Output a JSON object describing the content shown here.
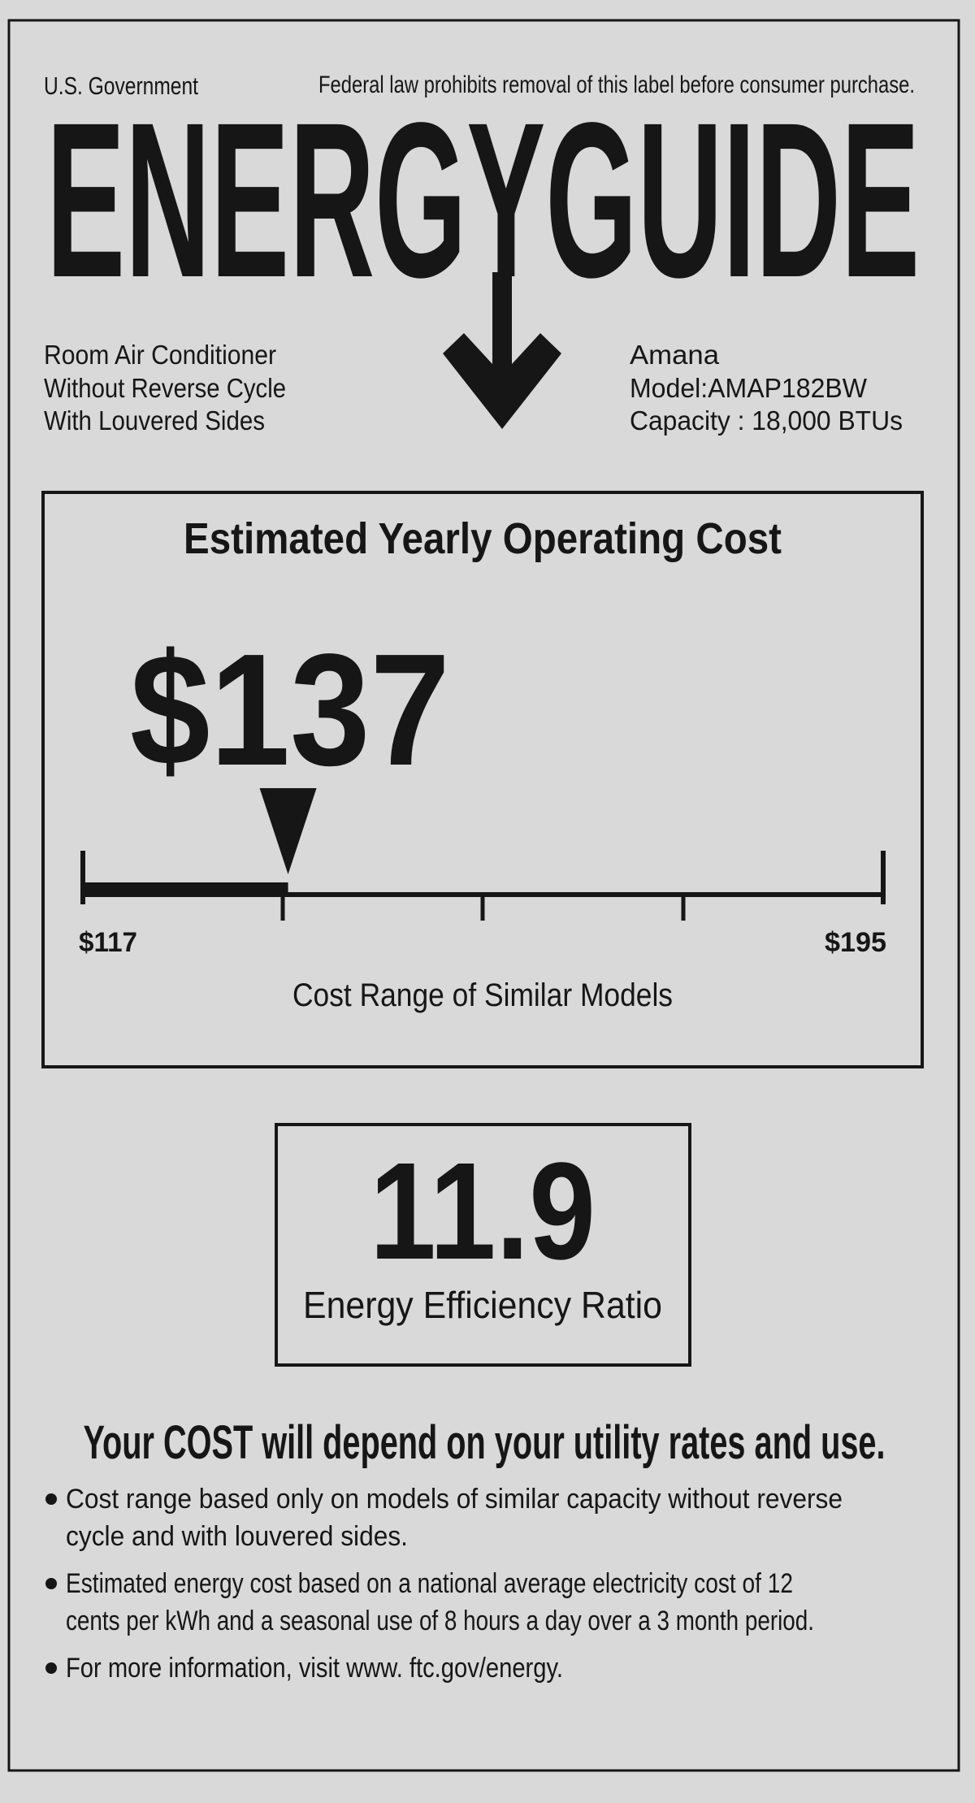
{
  "header": {
    "left": "U.S. Government",
    "right": "Federal law prohibits removal of this label before consumer purchase.",
    "title": "ENERGYGUIDE"
  },
  "product_type": [
    "Room Air Conditioner",
    "Without Reverse Cycle",
    "With Louvered Sides"
  ],
  "product_info": [
    "Amana",
    "Model:AMAP182BW",
    "Capacity : 18,000 BTUs"
  ],
  "cost": {
    "title": "Estimated Yearly Operating Cost",
    "value": {
      "value": 137,
      "label": "$137"
    },
    "range_min": {
      "value": 117,
      "label": "$117"
    },
    "range_max": {
      "value": 195,
      "label": "$195"
    },
    "range_caption": "Cost Range of Similar Models"
  },
  "efficiency": {
    "value": "11.9",
    "label": "Energy Efficiency Ratio"
  },
  "footer": {
    "headline": "Your COST will depend on your utility rates and use.",
    "bullets": [
      [
        "Cost range based only on models of similar capacity without reverse",
        "cycle and with louvered sides."
      ],
      [
        "Estimated energy cost based on a national average electricity cost of 12",
        "cents per kWh and a seasonal use of 8 hours a day over a 3 month period."
      ],
      [
        "For more information, visit www. ftc.gov/energy."
      ]
    ]
  }
}
